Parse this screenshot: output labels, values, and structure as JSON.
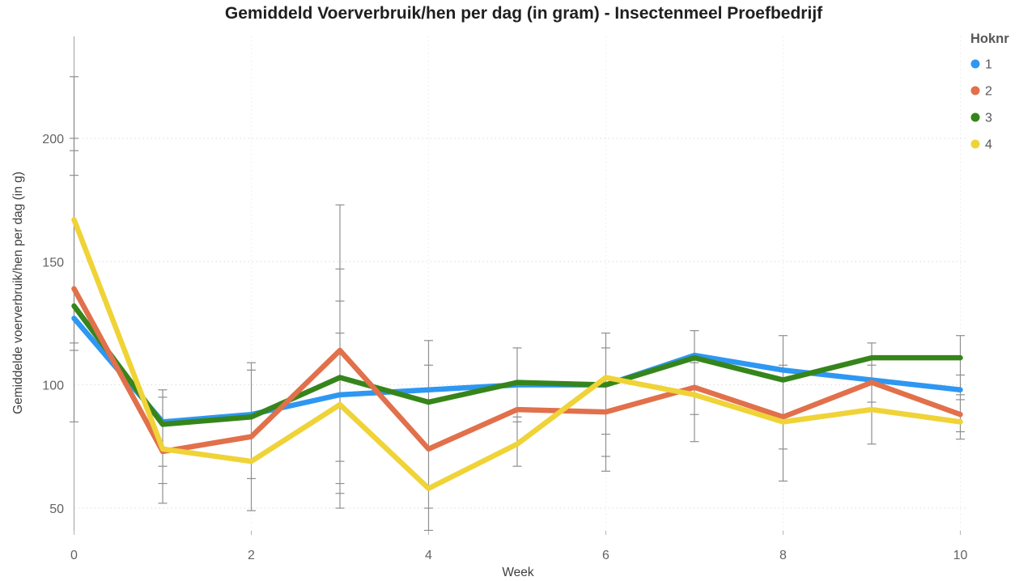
{
  "chart_data": {
    "type": "line",
    "title": "Gemiddeld Voerverbruik/hen per dag (in gram) - Insectenmeel Proefbedrijf",
    "xlabel": "Week",
    "ylabel": "Gemiddelde voerverbruik/hen per dag (in g)",
    "x": [
      0,
      1,
      2,
      3,
      4,
      5,
      6,
      7,
      8,
      9,
      10
    ],
    "xticks": [
      0,
      2,
      4,
      6,
      8,
      10
    ],
    "yticks": [
      50,
      100,
      150,
      200
    ],
    "ylim": [
      40,
      240
    ],
    "grid": true,
    "legend_title": "Hoknr",
    "legend_position": "top-right",
    "series": [
      {
        "name": "1",
        "color": "#2E97F2",
        "values": [
          127,
          85,
          88,
          96,
          98,
          100,
          100,
          112,
          106,
          102,
          98
        ]
      },
      {
        "name": "2",
        "color": "#E1704B",
        "values": [
          139,
          73,
          79,
          114,
          74,
          90,
          89,
          99,
          87,
          101,
          88
        ]
      },
      {
        "name": "3",
        "color": "#36851B",
        "values": [
          132,
          84,
          87,
          103,
          93,
          101,
          100,
          111,
          102,
          111,
          111
        ]
      },
      {
        "name": "4",
        "color": "#EFD337",
        "values": [
          167,
          74,
          69,
          92,
          58,
          76,
          103,
          96,
          85,
          90,
          85
        ]
      }
    ],
    "error_caps_by_week": [
      [
        225,
        200,
        195,
        185,
        117,
        114,
        85
      ],
      [
        98,
        95,
        67,
        60,
        52
      ],
      [
        109,
        106,
        62,
        49
      ],
      [
        173,
        147,
        134,
        121,
        69,
        60,
        56,
        50
      ],
      [
        118,
        108,
        50,
        41
      ],
      [
        115,
        87,
        85,
        67
      ],
      [
        121,
        115,
        80,
        71,
        65
      ],
      [
        122,
        109,
        88,
        77
      ],
      [
        120,
        108,
        74,
        61
      ],
      [
        117,
        108,
        93,
        76
      ],
      [
        120,
        104,
        96,
        94,
        81,
        78
      ]
    ],
    "error_bar_color": "#8f8f8f"
  }
}
